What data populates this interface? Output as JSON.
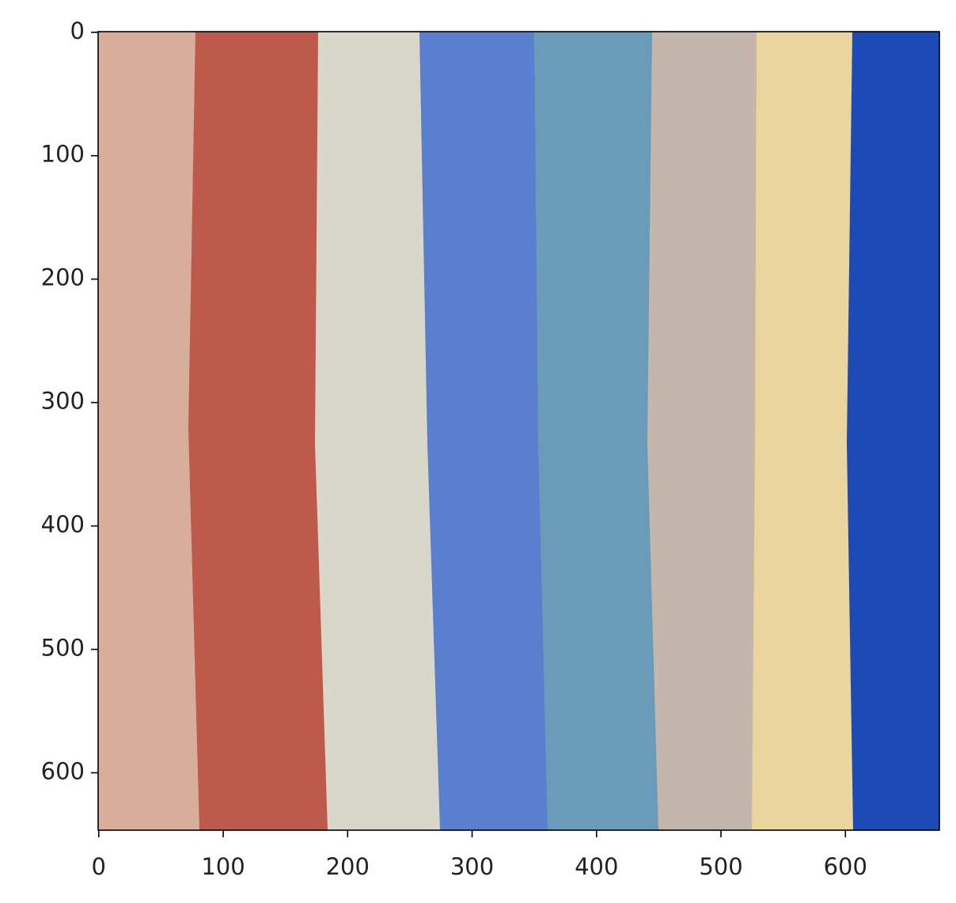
{
  "chart_data": {
    "type": "image",
    "xlim": [
      -0.5,
      675.5
    ],
    "ylim": [
      646.5,
      -0.5
    ],
    "xticks": [
      0,
      100,
      200,
      300,
      400,
      500,
      600
    ],
    "yticks": [
      0,
      100,
      200,
      300,
      400,
      500,
      600
    ]
  }
}
